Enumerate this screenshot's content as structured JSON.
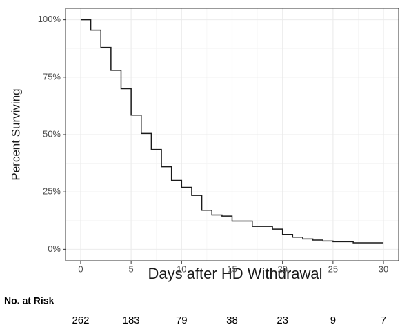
{
  "chart_data": {
    "type": "step",
    "xlabel": "Days after HD Withdrawal",
    "ylabel": "Percent Surviving",
    "x": [
      0,
      1,
      2,
      3,
      4,
      5,
      6,
      7,
      8,
      9,
      10,
      11,
      12,
      13,
      14,
      15,
      17,
      19,
      20,
      21,
      22,
      23,
      24,
      25,
      27,
      30
    ],
    "values": [
      100,
      95.5,
      88,
      78,
      70,
      58.5,
      50.5,
      43.5,
      36,
      30,
      27,
      23.5,
      17,
      15,
      14.5,
      12.3,
      10,
      8.8,
      6.5,
      5.3,
      4.5,
      4,
      3.6,
      3.3,
      2.8,
      2.8
    ],
    "color": "#1a1a1a",
    "xlim": [
      -1.5,
      31.5
    ],
    "ylim": [
      -5,
      105
    ],
    "xticks": [
      0,
      5,
      10,
      15,
      20,
      25,
      30
    ],
    "yticks": [
      {
        "value": 0,
        "label": "0%"
      },
      {
        "value": 25,
        "label": "25%"
      },
      {
        "value": 50,
        "label": "50%"
      },
      {
        "value": 75,
        "label": "75%"
      },
      {
        "value": 100,
        "label": "100%"
      }
    ],
    "x_minor_ticks": [
      2.5,
      7.5,
      12.5,
      17.5,
      22.5,
      27.5
    ],
    "y_minor_ticks": [
      12.5,
      37.5,
      62.5,
      87.5
    ],
    "grid": true,
    "risk_table": {
      "title": "No. at Risk",
      "counts": [
        262,
        183,
        79,
        38,
        23,
        9,
        7
      ]
    }
  }
}
